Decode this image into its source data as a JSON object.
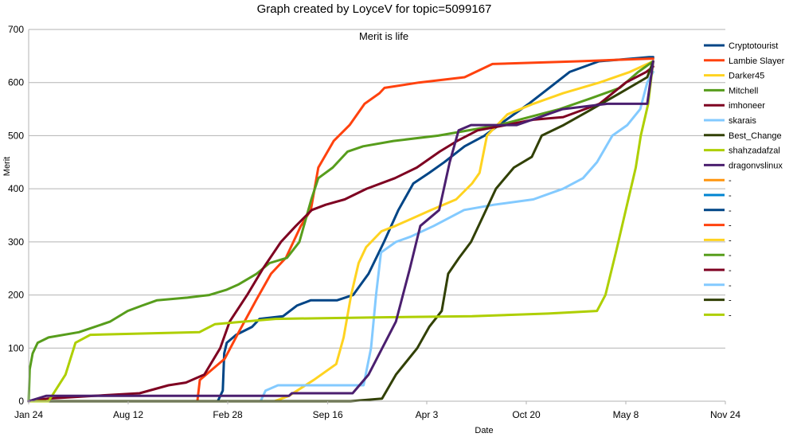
{
  "chart_data": {
    "type": "line",
    "title": "Graph created by LoyceV for topic=5099167",
    "subtitle": "Merit is life",
    "xlabel": "Date",
    "ylabel": "Merit",
    "ylim": [
      0,
      700
    ],
    "yticks": [
      0,
      100,
      200,
      300,
      400,
      500,
      600,
      700
    ],
    "xlim": [
      "2019-01-24",
      "2022-11-24"
    ],
    "xticks": [
      {
        "date": "2019-01-24",
        "label": "Jan 24"
      },
      {
        "date": "2019-08-12",
        "label": "Aug 12"
      },
      {
        "date": "2020-02-28",
        "label": "Feb 28"
      },
      {
        "date": "2020-09-16",
        "label": "Sep 16"
      },
      {
        "date": "2021-04-03",
        "label": "Apr 3"
      },
      {
        "date": "2021-10-20",
        "label": "Oct 20"
      },
      {
        "date": "2022-05-08",
        "label": "May 8"
      },
      {
        "date": "2022-11-24",
        "label": "Nov 24"
      }
    ],
    "grid": "horizontal",
    "legend_position": "right",
    "series": [
      {
        "name": "Cryptotourist",
        "color": "#004586",
        "points": [
          [
            "2019-01-24",
            0
          ],
          [
            "2020-02-08",
            0
          ],
          [
            "2020-02-18",
            20
          ],
          [
            "2020-02-21",
            90
          ],
          [
            "2020-02-26",
            110
          ],
          [
            "2020-03-16",
            125
          ],
          [
            "2020-04-17",
            140
          ],
          [
            "2020-05-02",
            155
          ],
          [
            "2020-06-18",
            160
          ],
          [
            "2020-07-16",
            180
          ],
          [
            "2020-08-13",
            190
          ],
          [
            "2020-10-05",
            190
          ],
          [
            "2020-11-06",
            200
          ],
          [
            "2020-12-07",
            240
          ],
          [
            "2021-01-07",
            300
          ],
          [
            "2021-02-05",
            360
          ],
          [
            "2021-03-07",
            410
          ],
          [
            "2021-04-08",
            430
          ],
          [
            "2021-05-08",
            450
          ],
          [
            "2021-06-18",
            480
          ],
          [
            "2021-07-28",
            500
          ],
          [
            "2021-09-10",
            530
          ],
          [
            "2021-10-25",
            560
          ],
          [
            "2021-12-05",
            590
          ],
          [
            "2022-01-15",
            620
          ],
          [
            "2022-03-15",
            640
          ],
          [
            "2022-05-18",
            645
          ],
          [
            "2022-06-24",
            648
          ],
          [
            "2022-07-02",
            648
          ]
        ]
      },
      {
        "name": "Lambie Slayer",
        "color": "#ff420e",
        "points": [
          [
            "2019-01-24",
            0
          ],
          [
            "2019-12-29",
            0
          ],
          [
            "2020-01-03",
            40
          ],
          [
            "2020-01-28",
            60
          ],
          [
            "2020-02-22",
            80
          ],
          [
            "2020-03-21",
            130
          ],
          [
            "2020-04-25",
            190
          ],
          [
            "2020-05-25",
            240
          ],
          [
            "2020-06-24",
            270
          ],
          [
            "2020-07-24",
            330
          ],
          [
            "2020-08-13",
            360
          ],
          [
            "2020-08-28",
            440
          ],
          [
            "2020-09-28",
            490
          ],
          [
            "2020-10-30",
            520
          ],
          [
            "2020-11-29",
            560
          ],
          [
            "2020-12-29",
            580
          ],
          [
            "2021-01-08",
            590
          ],
          [
            "2021-03-18",
            600
          ],
          [
            "2021-06-18",
            610
          ],
          [
            "2021-08-13",
            635
          ],
          [
            "2022-02-02",
            640
          ],
          [
            "2022-06-24",
            645
          ],
          [
            "2022-07-02",
            645
          ]
        ]
      },
      {
        "name": "Darker45",
        "color": "#ffd320",
        "points": [
          [
            "2019-01-24",
            0
          ],
          [
            "2020-06-01",
            0
          ],
          [
            "2020-06-30",
            10
          ],
          [
            "2020-08-19",
            40
          ],
          [
            "2020-10-03",
            70
          ],
          [
            "2020-10-18",
            120
          ],
          [
            "2020-11-02",
            200
          ],
          [
            "2020-11-17",
            260
          ],
          [
            "2020-12-02",
            290
          ],
          [
            "2021-01-02",
            320
          ],
          [
            "2021-01-30",
            330
          ],
          [
            "2021-04-12",
            360
          ],
          [
            "2021-06-01",
            380
          ],
          [
            "2021-07-03",
            410
          ],
          [
            "2021-07-18",
            430
          ],
          [
            "2021-08-02",
            500
          ],
          [
            "2021-09-12",
            540
          ],
          [
            "2021-11-03",
            560
          ],
          [
            "2022-01-02",
            580
          ],
          [
            "2022-03-16",
            600
          ],
          [
            "2022-05-16",
            620
          ],
          [
            "2022-07-02",
            640
          ]
        ]
      },
      {
        "name": "Mitchell",
        "color": "#579d1c",
        "points": [
          [
            "2019-01-24",
            0
          ],
          [
            "2019-01-26",
            60
          ],
          [
            "2019-02-01",
            90
          ],
          [
            "2019-02-11",
            110
          ],
          [
            "2019-03-05",
            120
          ],
          [
            "2019-05-05",
            130
          ],
          [
            "2019-06-06",
            140
          ],
          [
            "2019-07-07",
            150
          ],
          [
            "2019-08-11",
            170
          ],
          [
            "2019-09-09",
            180
          ],
          [
            "2019-10-09",
            190
          ],
          [
            "2019-12-09",
            195
          ],
          [
            "2020-01-22",
            200
          ],
          [
            "2020-02-26",
            210
          ],
          [
            "2020-03-21",
            220
          ],
          [
            "2020-04-26",
            240
          ],
          [
            "2020-05-22",
            260
          ],
          [
            "2020-06-26",
            270
          ],
          [
            "2020-07-21",
            300
          ],
          [
            "2020-08-14",
            380
          ],
          [
            "2020-08-28",
            420
          ],
          [
            "2020-09-26",
            440
          ],
          [
            "2020-10-26",
            470
          ],
          [
            "2020-11-26",
            480
          ],
          [
            "2021-01-26",
            490
          ],
          [
            "2021-04-26",
            500
          ],
          [
            "2021-08-26",
            520
          ],
          [
            "2021-12-26",
            550
          ],
          [
            "2022-02-26",
            570
          ],
          [
            "2022-04-26",
            590
          ],
          [
            "2022-06-02",
            620
          ],
          [
            "2022-07-02",
            640
          ]
        ]
      },
      {
        "name": "imhoneer",
        "color": "#7e0021",
        "points": [
          [
            "2019-01-24",
            0
          ],
          [
            "2019-03-03",
            5
          ],
          [
            "2019-06-05",
            10
          ],
          [
            "2019-09-04",
            15
          ],
          [
            "2019-11-01",
            30
          ],
          [
            "2019-12-06",
            35
          ],
          [
            "2020-01-12",
            50
          ],
          [
            "2020-02-13",
            100
          ],
          [
            "2020-03-03",
            150
          ],
          [
            "2020-04-07",
            200
          ],
          [
            "2020-05-09",
            250
          ],
          [
            "2020-06-14",
            300
          ],
          [
            "2020-07-14",
            330
          ],
          [
            "2020-08-15",
            360
          ],
          [
            "2020-09-12",
            370
          ],
          [
            "2020-10-20",
            380
          ],
          [
            "2020-12-03",
            400
          ],
          [
            "2021-01-29",
            420
          ],
          [
            "2021-03-14",
            440
          ],
          [
            "2021-04-29",
            470
          ],
          [
            "2021-06-03",
            490
          ],
          [
            "2021-07-14",
            510
          ],
          [
            "2021-09-09",
            520
          ],
          [
            "2021-11-03",
            530
          ],
          [
            "2022-01-02",
            535
          ],
          [
            "2022-03-16",
            560
          ],
          [
            "2022-05-08",
            600
          ],
          [
            "2022-06-18",
            620
          ],
          [
            "2022-07-02",
            630
          ]
        ]
      },
      {
        "name": "skarais",
        "color": "#83caff",
        "points": [
          [
            "2019-01-24",
            0
          ],
          [
            "2020-05-04",
            0
          ],
          [
            "2020-05-14",
            20
          ],
          [
            "2020-06-08",
            30
          ],
          [
            "2020-10-13",
            30
          ],
          [
            "2020-11-27",
            30
          ],
          [
            "2020-12-12",
            100
          ],
          [
            "2020-12-22",
            200
          ],
          [
            "2021-01-01",
            280
          ],
          [
            "2021-01-31",
            300
          ],
          [
            "2021-03-02",
            310
          ],
          [
            "2021-04-17",
            330
          ],
          [
            "2021-06-17",
            360
          ],
          [
            "2021-08-16",
            370
          ],
          [
            "2021-11-03",
            380
          ],
          [
            "2022-01-02",
            400
          ],
          [
            "2022-02-11",
            420
          ],
          [
            "2022-03-11",
            450
          ],
          [
            "2022-04-11",
            500
          ],
          [
            "2022-05-11",
            520
          ],
          [
            "2022-06-06",
            550
          ],
          [
            "2022-06-20",
            600
          ],
          [
            "2022-07-02",
            620
          ]
        ]
      },
      {
        "name": "Best_Change",
        "color": "#314004",
        "points": [
          [
            "2019-01-24",
            0
          ],
          [
            "2020-11-01",
            0
          ],
          [
            "2021-01-03",
            5
          ],
          [
            "2021-01-31",
            50
          ],
          [
            "2021-03-15",
            100
          ],
          [
            "2021-04-08",
            140
          ],
          [
            "2021-05-03",
            170
          ],
          [
            "2021-05-16",
            240
          ],
          [
            "2021-06-07",
            270
          ],
          [
            "2021-07-01",
            300
          ],
          [
            "2021-07-26",
            350
          ],
          [
            "2021-08-20",
            400
          ],
          [
            "2021-09-25",
            440
          ],
          [
            "2021-10-31",
            460
          ],
          [
            "2021-11-20",
            500
          ],
          [
            "2022-01-03",
            520
          ],
          [
            "2022-03-01",
            550
          ],
          [
            "2022-04-26",
            580
          ],
          [
            "2022-06-20",
            610
          ],
          [
            "2022-07-02",
            640
          ]
        ]
      },
      {
        "name": "shahzadafzal",
        "color": "#aecf00",
        "points": [
          [
            "2019-01-24",
            0
          ],
          [
            "2019-03-05",
            0
          ],
          [
            "2019-04-08",
            50
          ],
          [
            "2019-04-28",
            110
          ],
          [
            "2019-05-28",
            125
          ],
          [
            "2020-01-02",
            130
          ],
          [
            "2020-02-02",
            145
          ],
          [
            "2020-04-03",
            150
          ],
          [
            "2020-06-03",
            155
          ],
          [
            "2021-01-03",
            158
          ],
          [
            "2021-07-03",
            160
          ],
          [
            "2021-12-03",
            165
          ],
          [
            "2022-03-11",
            170
          ],
          [
            "2022-03-28",
            200
          ],
          [
            "2022-04-18",
            280
          ],
          [
            "2022-05-13",
            380
          ],
          [
            "2022-05-28",
            440
          ],
          [
            "2022-06-07",
            500
          ],
          [
            "2022-06-22",
            560
          ],
          [
            "2022-07-02",
            640
          ]
        ]
      },
      {
        "name": "dragonvslinux",
        "color": "#4b1f6f",
        "points": [
          [
            "2019-01-24",
            0
          ],
          [
            "2019-02-28",
            10
          ],
          [
            "2020-06-30",
            10
          ],
          [
            "2020-07-06",
            15
          ],
          [
            "2020-11-05",
            15
          ],
          [
            "2020-12-07",
            50
          ],
          [
            "2021-01-31",
            150
          ],
          [
            "2021-02-28",
            250
          ],
          [
            "2021-03-21",
            330
          ],
          [
            "2021-04-28",
            360
          ],
          [
            "2021-05-19",
            450
          ],
          [
            "2021-06-06",
            510
          ],
          [
            "2021-07-01",
            520
          ],
          [
            "2021-10-01",
            520
          ],
          [
            "2022-01-01",
            550
          ],
          [
            "2022-04-01",
            560
          ],
          [
            "2022-06-20",
            560
          ],
          [
            "2022-07-02",
            640
          ]
        ]
      }
    ],
    "extra_legend_entries": [
      {
        "name": "-",
        "color": "#ff950e"
      },
      {
        "name": "-",
        "color": "#0084d1"
      },
      {
        "name": "-",
        "color": "#004586"
      },
      {
        "name": "-",
        "color": "#ff420e"
      },
      {
        "name": "-",
        "color": "#ffd320"
      },
      {
        "name": "-",
        "color": "#579d1c"
      },
      {
        "name": "-",
        "color": "#7e0021"
      },
      {
        "name": "-",
        "color": "#83caff"
      },
      {
        "name": "-",
        "color": "#314004"
      },
      {
        "name": "-",
        "color": "#aecf00"
      }
    ]
  }
}
